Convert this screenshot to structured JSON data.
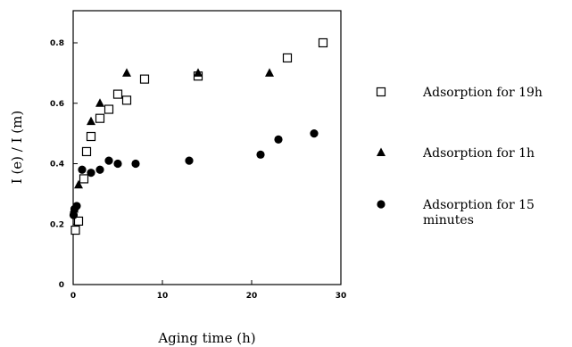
{
  "chart_data": {
    "type": "scatter",
    "xlabel": "Aging time (h)",
    "ylabel": "I (e) / I (m)",
    "xlim": [
      0,
      30
    ],
    "ylim": [
      0,
      0.9
    ],
    "xticks": [
      "0",
      "10",
      "20",
      "30"
    ],
    "yticks": [
      "0",
      "0.2",
      "0.4",
      "0.6",
      "0.8"
    ],
    "legend_position": "right",
    "series": [
      {
        "name": "Adsorption  for 19h",
        "marker": "open-square",
        "legend_lines": [
          "Adsorption  for 19h"
        ],
        "points": [
          [
            0.25,
            0.18
          ],
          [
            0.6,
            0.21
          ],
          [
            1.2,
            0.35
          ],
          [
            1.5,
            0.44
          ],
          [
            2.0,
            0.49
          ],
          [
            3.0,
            0.55
          ],
          [
            4.0,
            0.58
          ],
          [
            5.0,
            0.63
          ],
          [
            6.0,
            0.61
          ],
          [
            8.0,
            0.68
          ],
          [
            14.0,
            0.69
          ],
          [
            24.0,
            0.75
          ],
          [
            28.0,
            0.8
          ]
        ]
      },
      {
        "name": "Adsorption for 1h",
        "marker": "filled-triangle",
        "legend_lines": [
          "Adsorption for 1h"
        ],
        "points": [
          [
            0.1,
            0.25
          ],
          [
            0.6,
            0.33
          ],
          [
            2.0,
            0.54
          ],
          [
            3.0,
            0.6
          ],
          [
            6.0,
            0.7
          ],
          [
            14.0,
            0.7
          ],
          [
            22.0,
            0.7
          ]
        ]
      },
      {
        "name": "Adsorption for 15 minutes",
        "marker": "filled-circle",
        "legend_lines": [
          "Adsorption for 15",
          "minutes"
        ],
        "points": [
          [
            0.05,
            0.23
          ],
          [
            0.15,
            0.25
          ],
          [
            0.4,
            0.26
          ],
          [
            1.0,
            0.38
          ],
          [
            2.0,
            0.37
          ],
          [
            3.0,
            0.38
          ],
          [
            4.0,
            0.41
          ],
          [
            5.0,
            0.4
          ],
          [
            7.0,
            0.4
          ],
          [
            13.0,
            0.41
          ],
          [
            21.0,
            0.43
          ],
          [
            23.0,
            0.48
          ],
          [
            27.0,
            0.5
          ]
        ]
      }
    ]
  }
}
